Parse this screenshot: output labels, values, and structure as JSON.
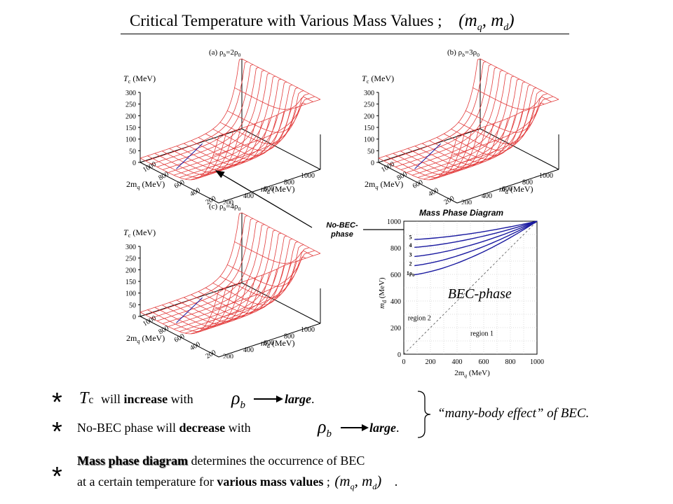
{
  "header": {
    "title": "Critical Temperature with Various Mass Values ;",
    "title_math": "(m",
    "title_math_q": "q",
    "title_math_sep": ", m",
    "title_math_d": "d",
    "title_math_end": ")"
  },
  "plots": [
    {
      "label": "(a) ρ",
      "label_sub": "b",
      "label_rest": "=2ρ",
      "label_sub2": "0",
      "z_axis_label": "T",
      "z_axis_sub": "c",
      "z_axis_unit": " (MeV)",
      "z_ticks": [
        "300",
        "250",
        "200",
        "150",
        "100",
        "50",
        "0"
      ],
      "left_axis_label": "2m",
      "left_axis_sub": "q",
      "left_axis_unit": " (MeV)",
      "left_ticks": [
        "1000",
        "800",
        "600",
        "400",
        "200",
        "0"
      ],
      "right_axis_label": "m",
      "right_axis_sub": "d",
      "right_axis_unit": " (MeV)",
      "right_ticks": [
        "1000",
        "800",
        "600",
        "400",
        "200",
        "0"
      ]
    },
    {
      "label": "(b) ρ",
      "label_sub": "b",
      "label_rest": "=3ρ",
      "label_sub2": "0",
      "z_axis_label": "T",
      "z_axis_sub": "c",
      "z_axis_unit": " (MeV)",
      "z_ticks": [
        "300",
        "250",
        "200",
        "150",
        "100",
        "50",
        "0"
      ],
      "left_axis_label": "2m",
      "left_axis_sub": "q",
      "left_axis_unit": " (MeV)",
      "left_ticks": [
        "1000",
        "800",
        "600",
        "400",
        "200",
        "0"
      ],
      "right_axis_label": "m",
      "right_axis_sub": "d",
      "right_axis_unit": " (MeV)",
      "right_ticks": [
        "1000",
        "800",
        "600",
        "400",
        "200",
        "0"
      ]
    },
    {
      "label": "(c) ρ",
      "label_sub": "b",
      "label_rest": "=4ρ",
      "label_sub2": "0",
      "z_axis_label": "T",
      "z_axis_sub": "c",
      "z_axis_unit": " (MeV)",
      "z_ticks": [
        "300",
        "250",
        "200",
        "150",
        "100",
        "50",
        "0"
      ],
      "left_axis_label": "2m",
      "left_axis_sub": "q",
      "left_axis_unit": " (MeV)",
      "left_ticks": [
        "1000",
        "800",
        "600",
        "400",
        "200",
        "0"
      ],
      "right_axis_label": "m",
      "right_axis_sub": "d",
      "right_axis_unit": " (MeV)",
      "right_ticks": [
        "1000",
        "800",
        "600",
        "400",
        "200",
        "0"
      ]
    }
  ],
  "callout": {
    "line1": "No-BEC-",
    "line2": "phase"
  },
  "phase_diagram": {
    "title": "Mass Phase Diagram",
    "y_label": "m",
    "y_label_sub": "d",
    "y_label_unit": " (MeV)",
    "x_label": "2m",
    "x_label_sub": "q",
    "x_label_unit": " (MeV)",
    "x_ticks": [
      "0",
      "200",
      "400",
      "600",
      "800",
      "1000"
    ],
    "y_ticks": [
      "0",
      "200",
      "400",
      "600",
      "800",
      "1000"
    ],
    "region_bec": "BEC-phase",
    "region2": "region 2",
    "region1": "region 1",
    "curve_labels": [
      "5",
      "4",
      "3",
      "2",
      "1"
    ],
    "curve_label_suffix": "ρ",
    "curve_label_suffix_sub": "0",
    "curve_color": "#1a1aa0"
  },
  "statements": {
    "s1": {
      "bullet": "*",
      "tc": "T",
      "tc_sub": "c",
      "pre": "will ",
      "bold": "increase",
      "post": " with",
      "rho": "ρ",
      "rho_sub": "b",
      "large": "large",
      "end": "."
    },
    "s2": {
      "bullet": "*",
      "pre": "No-BEC phase will ",
      "bold": "decrease",
      "post": " with",
      "rho": "ρ",
      "rho_sub": "b",
      "large": "large",
      "end": "."
    },
    "s3": {
      "bullet": "*",
      "bold1": "Mass phase diagram",
      "text1": " determines the occurrence of BEC",
      "text2a": "at a certain temperature for ",
      "bold2": "various mass values",
      "text2b": " ;",
      "math_open": "(m",
      "math_q": "q",
      "math_sep": ", m",
      "math_d": "d",
      "math_close": ")",
      "end": "."
    },
    "brace_note": "“many-body effect” of BEC."
  },
  "colors": {
    "surface": "#e23b3b",
    "axis": "#000000",
    "curve": "#1a1aa0",
    "grid": "#555555"
  }
}
